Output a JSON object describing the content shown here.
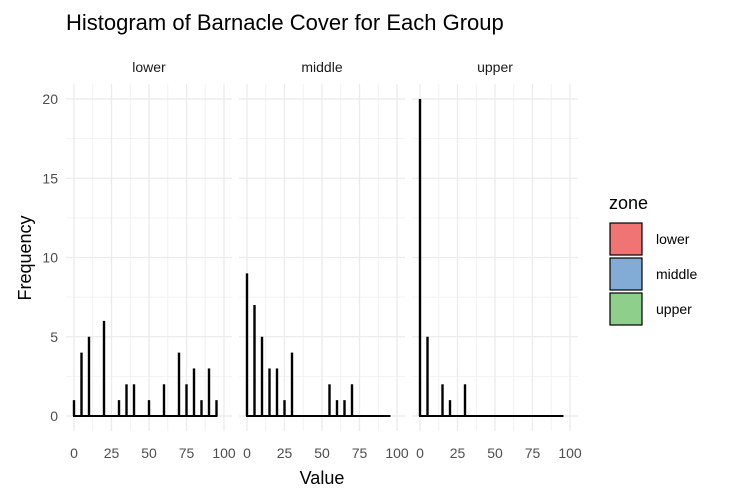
{
  "chart_data": {
    "type": "bar",
    "title": "Histogram of Barnacle Cover for Each Group",
    "xlabel": "Value",
    "ylabel": "Frequency",
    "xlim": [
      0,
      100
    ],
    "ylim": [
      0,
      20
    ],
    "x_ticks": [
      "0",
      "25",
      "50",
      "75",
      "100"
    ],
    "y_ticks": [
      "0",
      "5",
      "10",
      "15",
      "20"
    ],
    "grid": true,
    "legend": {
      "title": "zone",
      "position": "right",
      "entries": [
        {
          "name": "lower",
          "color": "#f07474"
        },
        {
          "name": "middle",
          "color": "#82acd5"
        },
        {
          "name": "upper",
          "color": "#8ecf8c"
        }
      ]
    },
    "panels": [
      {
        "name": "lower",
        "bins": [
          {
            "x": 0,
            "count": 1
          },
          {
            "x": 5,
            "count": 4
          },
          {
            "x": 10,
            "count": 5
          },
          {
            "x": 20,
            "count": 6
          },
          {
            "x": 30,
            "count": 1
          },
          {
            "x": 35,
            "count": 2
          },
          {
            "x": 40,
            "count": 2
          },
          {
            "x": 50,
            "count": 1
          },
          {
            "x": 60,
            "count": 2
          },
          {
            "x": 70,
            "count": 4
          },
          {
            "x": 75,
            "count": 2
          },
          {
            "x": 80,
            "count": 3
          },
          {
            "x": 85,
            "count": 1
          },
          {
            "x": 90,
            "count": 3
          },
          {
            "x": 95,
            "count": 1
          }
        ]
      },
      {
        "name": "middle",
        "bins": [
          {
            "x": 0,
            "count": 9
          },
          {
            "x": 5,
            "count": 7
          },
          {
            "x": 10,
            "count": 5
          },
          {
            "x": 15,
            "count": 3
          },
          {
            "x": 20,
            "count": 3
          },
          {
            "x": 25,
            "count": 1
          },
          {
            "x": 30,
            "count": 4
          },
          {
            "x": 55,
            "count": 2
          },
          {
            "x": 60,
            "count": 1
          },
          {
            "x": 65,
            "count": 1
          },
          {
            "x": 70,
            "count": 2
          }
        ]
      },
      {
        "name": "upper",
        "bins": [
          {
            "x": 0,
            "count": 20
          },
          {
            "x": 5,
            "count": 5
          },
          {
            "x": 15,
            "count": 2
          },
          {
            "x": 20,
            "count": 1
          },
          {
            "x": 30,
            "count": 2
          }
        ]
      }
    ]
  }
}
